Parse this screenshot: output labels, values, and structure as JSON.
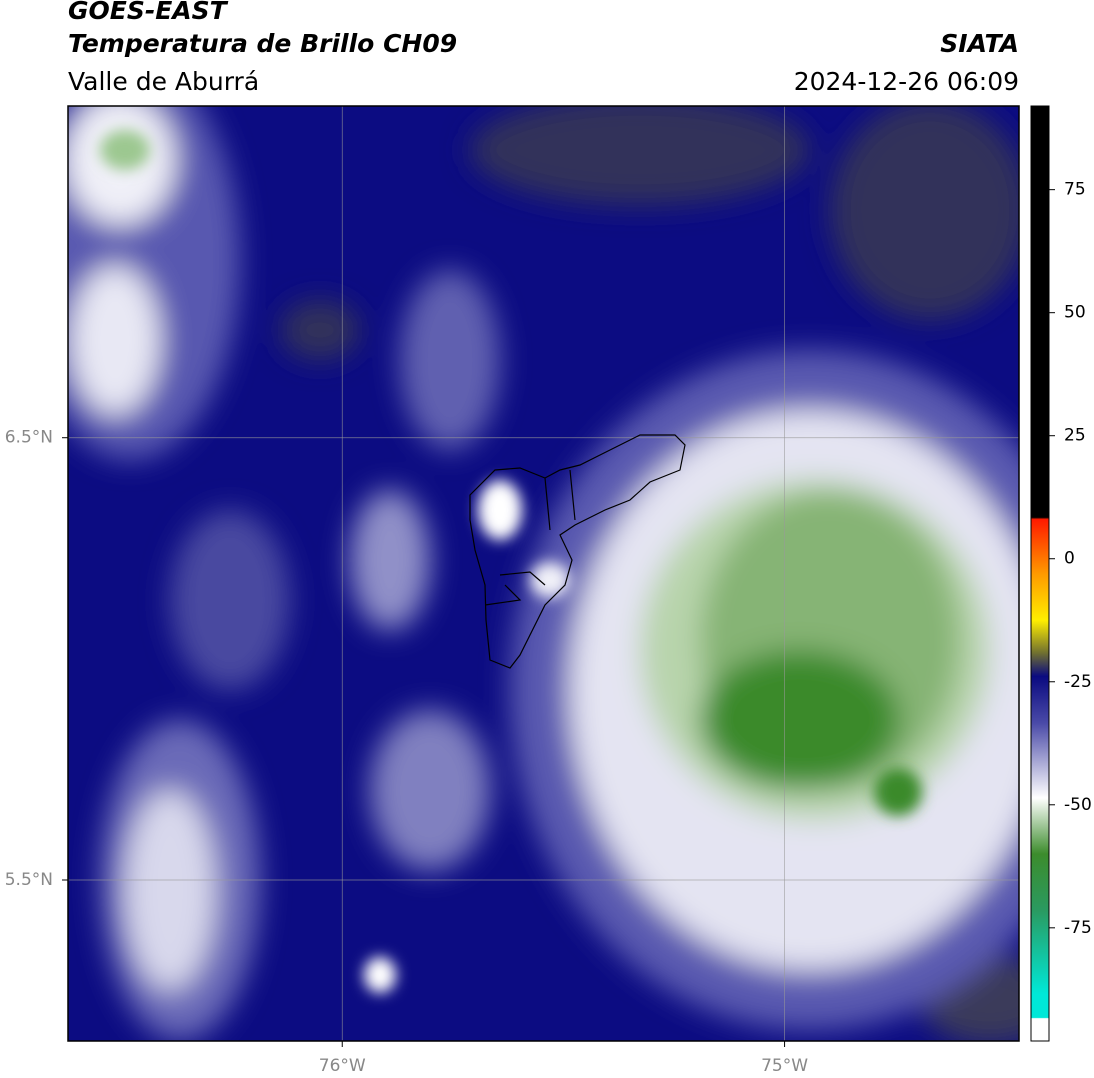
{
  "header": {
    "title": "GOES-EAST",
    "subtitle": "Temperatura de Brillo CH09",
    "region": "Valle de Aburrá",
    "source": "SIATA",
    "datetime": "2024-12-26 06:09"
  },
  "map": {
    "xlim": [
      -76.62,
      -74.47
    ],
    "ylim": [
      5.136,
      7.25
    ],
    "xticks": [
      {
        "value": -76,
        "label": "76°W"
      },
      {
        "value": -75,
        "label": "75°W"
      }
    ],
    "yticks": [
      {
        "value": 6.5,
        "label": "6.5°N"
      },
      {
        "value": 5.5,
        "label": "5.5°N"
      }
    ],
    "grid": true
  },
  "colorbar": {
    "lim": [
      -98,
      92
    ],
    "ticks": [
      75,
      50,
      25,
      0,
      -25,
      -50,
      -75
    ]
  }
}
